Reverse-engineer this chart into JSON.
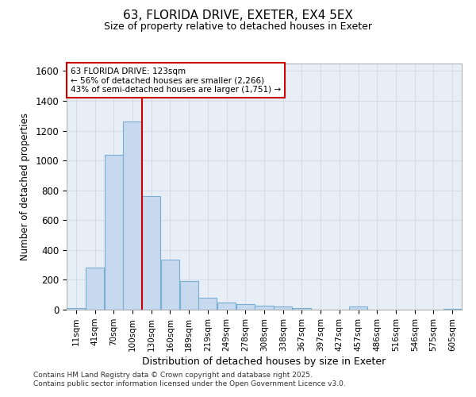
{
  "title_line1": "63, FLORIDA DRIVE, EXETER, EX4 5EX",
  "title_line2": "Size of property relative to detached houses in Exeter",
  "xlabel": "Distribution of detached houses by size in Exeter",
  "ylabel": "Number of detached properties",
  "bar_labels": [
    "11sqm",
    "41sqm",
    "70sqm",
    "100sqm",
    "130sqm",
    "160sqm",
    "189sqm",
    "219sqm",
    "249sqm",
    "278sqm",
    "308sqm",
    "338sqm",
    "367sqm",
    "397sqm",
    "427sqm",
    "457sqm",
    "486sqm",
    "516sqm",
    "546sqm",
    "575sqm",
    "605sqm"
  ],
  "bar_values": [
    10,
    280,
    1040,
    1260,
    760,
    335,
    190,
    80,
    50,
    35,
    25,
    20,
    10,
    0,
    0,
    20,
    0,
    0,
    0,
    0,
    5
  ],
  "bar_color": "#c6d9ee",
  "bar_edge_color": "#7aafd4",
  "grid_color": "#d0d8e4",
  "background_color": "#e8eef5",
  "vline_bin_index": 4.0,
  "annotation_text": "63 FLORIDA DRIVE: 123sqm\n← 56% of detached houses are smaller (2,266)\n43% of semi-detached houses are larger (1,751) →",
  "annotation_box_color": "#cc0000",
  "ylim": [
    0,
    1650
  ],
  "yticks": [
    0,
    200,
    400,
    600,
    800,
    1000,
    1200,
    1400,
    1600
  ],
  "footer_line1": "Contains HM Land Registry data © Crown copyright and database right 2025.",
  "footer_line2": "Contains public sector information licensed under the Open Government Licence v3.0.",
  "fig_width": 6.0,
  "fig_height": 5.0,
  "dpi": 100
}
